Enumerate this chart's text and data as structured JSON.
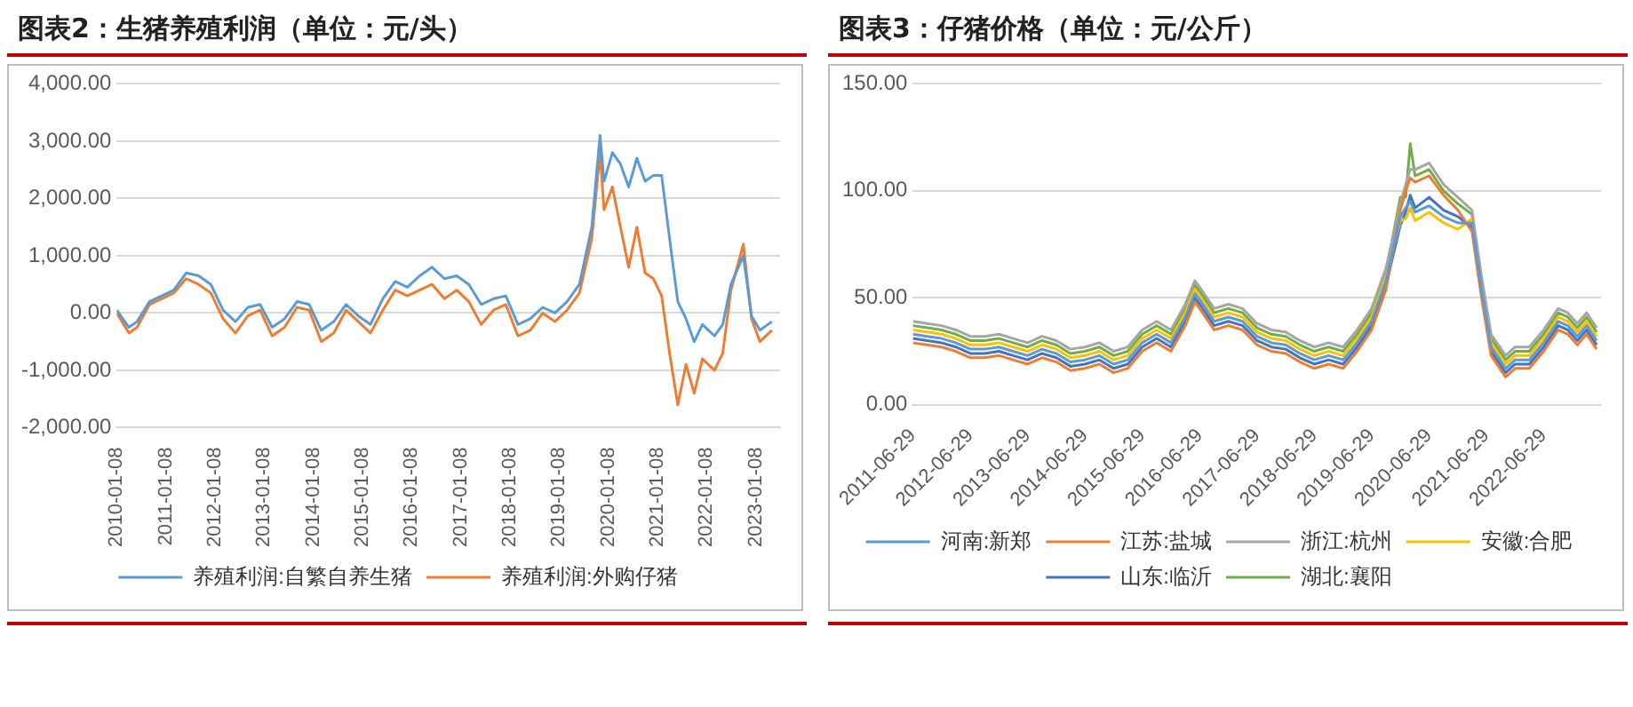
{
  "chart_data": [
    {
      "type": "line",
      "title": "图表2：生猪养殖利润（单位：元/头）",
      "legend": "bottom",
      "grid": "y",
      "line_style": "solid",
      "x": [
        "2010-01-08",
        "2010-04-08",
        "2010-06-08",
        "2010-09-08",
        "2010-12-08",
        "2011-03-08",
        "2011-06-08",
        "2011-09-08",
        "2011-12-08",
        "2012-03-08",
        "2012-06-08",
        "2012-09-08",
        "2012-12-08",
        "2013-03-08",
        "2013-06-08",
        "2013-09-08",
        "2013-12-08",
        "2014-03-08",
        "2014-06-08",
        "2014-09-08",
        "2014-12-08",
        "2015-03-08",
        "2015-06-08",
        "2015-09-08",
        "2015-12-08",
        "2016-03-08",
        "2016-06-08",
        "2016-09-08",
        "2016-12-08",
        "2017-03-08",
        "2017-06-08",
        "2017-09-08",
        "2017-12-08",
        "2018-03-08",
        "2018-06-08",
        "2018-09-08",
        "2018-12-08",
        "2019-03-08",
        "2019-06-08",
        "2019-09-08",
        "2019-11-08",
        "2019-12-08",
        "2020-02-08",
        "2020-04-08",
        "2020-06-08",
        "2020-08-08",
        "2020-10-08",
        "2020-12-08",
        "2021-02-08",
        "2021-04-08",
        "2021-06-08",
        "2021-08-08",
        "2021-10-08",
        "2021-12-08",
        "2022-03-08",
        "2022-05-08",
        "2022-07-08",
        "2022-10-08",
        "2022-12-08",
        "2023-02-08",
        "2023-05-08"
      ],
      "series": [
        {
          "name": "养殖利润:自繁自养生猪",
          "color": "#5b9bd5",
          "values": [
            50,
            -250,
            -150,
            200,
            300,
            400,
            700,
            650,
            500,
            50,
            -150,
            100,
            150,
            -250,
            -100,
            200,
            150,
            -300,
            -150,
            150,
            -50,
            -200,
            250,
            550,
            450,
            650,
            800,
            600,
            650,
            500,
            150,
            250,
            300,
            -200,
            -100,
            100,
            0,
            200,
            500,
            1500,
            3100,
            2300,
            2800,
            2600,
            2200,
            2700,
            2300,
            2400,
            2400,
            1300,
            200,
            -100,
            -500,
            -200,
            -400,
            -200,
            500,
            1000,
            -50,
            -300,
            -150
          ]
        },
        {
          "name": "养殖利润:外购仔猪",
          "color": "#ed7d31",
          "values": [
            0,
            -350,
            -250,
            150,
            250,
            350,
            600,
            500,
            350,
            -100,
            -350,
            -50,
            50,
            -400,
            -250,
            100,
            50,
            -500,
            -350,
            50,
            -150,
            -350,
            50,
            400,
            300,
            400,
            500,
            250,
            400,
            200,
            -200,
            50,
            150,
            -400,
            -300,
            0,
            -150,
            50,
            350,
            1300,
            2800,
            1800,
            2200,
            1500,
            800,
            1500,
            700,
            600,
            300,
            -700,
            -1600,
            -900,
            -1400,
            -800,
            -1000,
            -700,
            400,
            1200,
            -100,
            -500,
            -300
          ]
        }
      ],
      "xlim": [
        "2010-01-08",
        "2023-07-08"
      ],
      "xticks": [
        "2010-01-08",
        "2011-01-08",
        "2012-01-08",
        "2013-01-08",
        "2014-01-08",
        "2015-01-08",
        "2016-01-08",
        "2017-01-08",
        "2018-01-08",
        "2019-01-08",
        "2020-01-08",
        "2021-01-08",
        "2022-01-08",
        "2023-01-08"
      ],
      "ylim": [
        -2000,
        4000
      ],
      "yticks": [
        {
          "value": -2000,
          "label": "-2,000.00"
        },
        {
          "value": -1000,
          "label": "-1,000.00"
        },
        {
          "value": 0,
          "label": "0.00"
        },
        {
          "value": 1000,
          "label": "1,000.00"
        },
        {
          "value": 2000,
          "label": "2,000.00"
        },
        {
          "value": 3000,
          "label": "3,000.00"
        },
        {
          "value": 4000,
          "label": "4,000.00"
        }
      ]
    },
    {
      "type": "line",
      "title": "图表3：仔猪价格（单位：元/公斤）",
      "legend": "bottom",
      "grid": "y",
      "line_style": "solid",
      "x": [
        "2011-06-29",
        "2011-09-29",
        "2011-12-29",
        "2012-03-29",
        "2012-06-29",
        "2012-09-29",
        "2012-12-29",
        "2013-03-29",
        "2013-06-29",
        "2013-09-29",
        "2013-12-29",
        "2014-03-29",
        "2014-06-29",
        "2014-09-29",
        "2014-12-29",
        "2015-03-29",
        "2015-06-29",
        "2015-09-29",
        "2015-12-29",
        "2016-03-29",
        "2016-05-29",
        "2016-06-29",
        "2016-09-29",
        "2016-12-29",
        "2017-03-29",
        "2017-06-29",
        "2017-09-29",
        "2017-12-29",
        "2018-03-29",
        "2018-06-29",
        "2018-09-29",
        "2018-12-29",
        "2019-03-29",
        "2019-06-29",
        "2019-09-29",
        "2019-12-29",
        "2020-02-01",
        "2020-03-01",
        "2020-04-01",
        "2020-06-29",
        "2020-09-29",
        "2020-12-29",
        "2021-03-29",
        "2021-05-29",
        "2021-07-29",
        "2021-10-29",
        "2021-12-29",
        "2022-03-29",
        "2022-06-29",
        "2022-09-29",
        "2022-11-29",
        "2023-01-29",
        "2023-03-29",
        "2023-06-01"
      ],
      "series": [
        {
          "name": "河南:新郑",
          "color": "#5b9bd5",
          "values": [
            33,
            32,
            31,
            29,
            26,
            26,
            27,
            25,
            23,
            26,
            24,
            20,
            21,
            23,
            19,
            21,
            29,
            33,
            29,
            41,
            52,
            49,
            39,
            41,
            39,
            32,
            29,
            28,
            24,
            21,
            23,
            21,
            29,
            39,
            58,
            88,
            92,
            95,
            90,
            93,
            88,
            85,
            85,
            54,
            27,
            17,
            21,
            21,
            29,
            39,
            37,
            32,
            37,
            30
          ]
        },
        {
          "name": "江苏:盐城",
          "color": "#ed7d31",
          "values": [
            29,
            28,
            27,
            25,
            22,
            22,
            23,
            21,
            19,
            22,
            20,
            16,
            17,
            19,
            15,
            17,
            25,
            29,
            25,
            37,
            48,
            45,
            35,
            37,
            35,
            28,
            25,
            24,
            20,
            17,
            19,
            17,
            25,
            35,
            54,
            91,
            100,
            106,
            104,
            107,
            98,
            91,
            81,
            50,
            23,
            13,
            17,
            17,
            25,
            35,
            33,
            28,
            33,
            26
          ]
        },
        {
          "name": "浙江:杭州",
          "color": "#a5a5a5",
          "values": [
            39,
            38,
            37,
            35,
            32,
            32,
            33,
            31,
            29,
            32,
            30,
            26,
            27,
            29,
            25,
            27,
            35,
            39,
            35,
            47,
            58,
            55,
            45,
            47,
            45,
            38,
            35,
            34,
            30,
            27,
            29,
            27,
            35,
            45,
            64,
            94,
            103,
            110,
            110,
            113,
            103,
            97,
            91,
            60,
            33,
            23,
            27,
            27,
            35,
            45,
            43,
            38,
            43,
            36
          ]
        },
        {
          "name": "安徽:合肥",
          "color": "#ffc000",
          "values": [
            35,
            34,
            33,
            31,
            28,
            28,
            29,
            27,
            25,
            28,
            26,
            22,
            23,
            25,
            21,
            23,
            31,
            35,
            31,
            43,
            54,
            51,
            41,
            43,
            41,
            34,
            31,
            30,
            26,
            23,
            25,
            23,
            31,
            41,
            60,
            86,
            87,
            92,
            86,
            90,
            85,
            82,
            87,
            56,
            29,
            19,
            23,
            23,
            31,
            41,
            39,
            34,
            39,
            32
          ]
        },
        {
          "name": "山东:临沂",
          "color": "#4472c4",
          "values": [
            31,
            30,
            29,
            27,
            24,
            24,
            25,
            23,
            21,
            24,
            22,
            18,
            19,
            21,
            17,
            19,
            27,
            31,
            27,
            39,
            50,
            47,
            37,
            39,
            37,
            30,
            27,
            26,
            22,
            19,
            21,
            19,
            27,
            37,
            56,
            84,
            90,
            98,
            92,
            97,
            91,
            88,
            83,
            52,
            25,
            15,
            19,
            19,
            27,
            37,
            35,
            30,
            35,
            28
          ]
        },
        {
          "name": "湖北:襄阳",
          "color": "#70ad47",
          "values": [
            37,
            36,
            35,
            33,
            30,
            30,
            31,
            29,
            27,
            30,
            28,
            24,
            25,
            27,
            23,
            25,
            33,
            37,
            33,
            45,
            56,
            53,
            43,
            45,
            43,
            36,
            33,
            32,
            28,
            25,
            27,
            25,
            33,
            43,
            62,
            97,
            97,
            122,
            107,
            110,
            100,
            94,
            89,
            58,
            31,
            21,
            25,
            25,
            33,
            43,
            41,
            36,
            41,
            34
          ]
        }
      ],
      "xlim": [
        "2011-06-29",
        "2023-06-29"
      ],
      "xticks": [
        "2011-06-29",
        "2012-06-29",
        "2013-06-29",
        "2014-06-29",
        "2015-06-29",
        "2016-06-29",
        "2017-06-29",
        "2018-06-29",
        "2019-06-29",
        "2020-06-29",
        "2021-06-29",
        "2022-06-29"
      ],
      "ylim": [
        0,
        150
      ],
      "yticks": [
        {
          "value": 0,
          "label": "0.00"
        },
        {
          "value": 50,
          "label": "50.00"
        },
        {
          "value": 100,
          "label": "100.00"
        },
        {
          "value": 150,
          "label": "150.00"
        }
      ]
    }
  ]
}
